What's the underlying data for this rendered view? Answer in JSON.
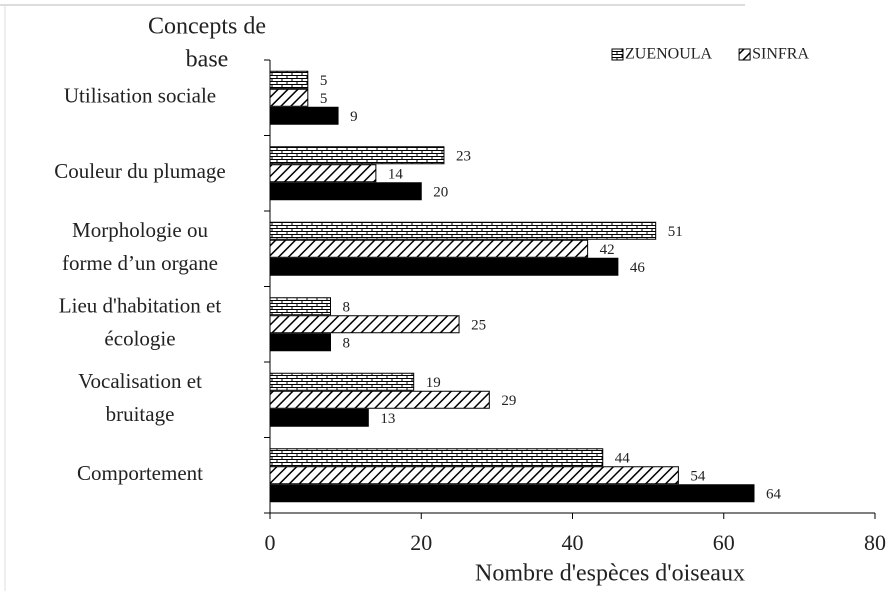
{
  "chart_data": {
    "type": "bar",
    "orientation": "horizontal",
    "y_label": [
      "Concepts de",
      "base"
    ],
    "x_label": "Nombre d'espèces d'oiseaux",
    "categories": [
      [
        "Utilisation sociale"
      ],
      [
        "Couleur du plumage"
      ],
      [
        "Morphologie ou",
        "forme d’un organe"
      ],
      [
        "Lieu d'habitation et",
        "écologie"
      ],
      [
        "Vocalisation et",
        "bruitage"
      ],
      [
        "Comportement"
      ]
    ],
    "series": [
      {
        "name": "ZUENOULA",
        "pattern": "brick",
        "color": "#000000",
        "values": [
          5,
          23,
          51,
          8,
          19,
          44
        ]
      },
      {
        "name": "SINFRA",
        "pattern": "hatch",
        "color": "#000000",
        "values": [
          5,
          14,
          42,
          25,
          29,
          54
        ]
      },
      {
        "pattern": "solid",
        "color": "#000000",
        "values": [
          9,
          20,
          46,
          8,
          13,
          64
        ]
      }
    ],
    "xlim": [
      0,
      80
    ],
    "xticks": [
      0,
      20,
      40,
      60,
      80
    ],
    "legend": "top-right"
  }
}
